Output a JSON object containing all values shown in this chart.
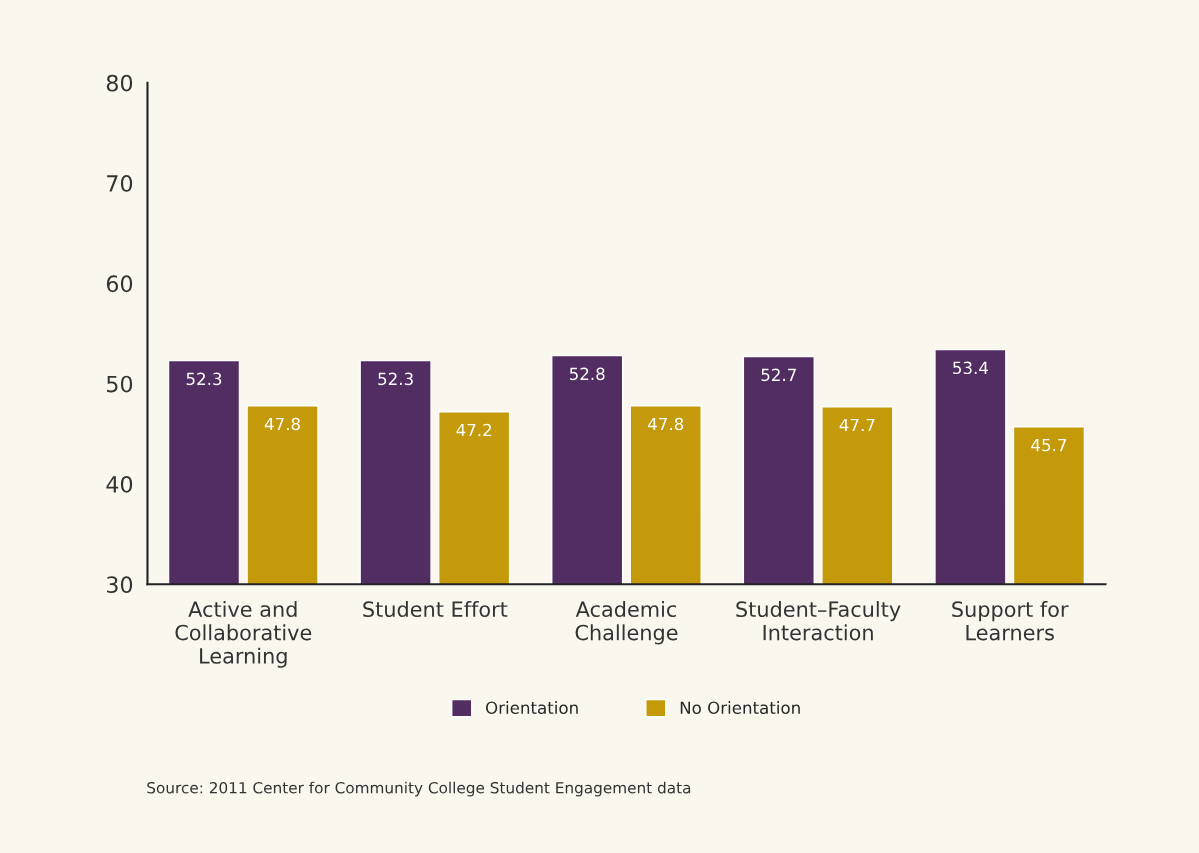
{
  "chart_data": {
    "type": "bar",
    "categories": [
      "Active and\nCollaborative\nLearning",
      "Student Effort",
      "Academic\nChallenge",
      "Student–Faculty\nInteraction",
      "Support for\nLearners"
    ],
    "series": [
      {
        "name": "Orientation",
        "color": "#522d62",
        "values": [
          52.3,
          52.3,
          52.8,
          52.7,
          53.4
        ]
      },
      {
        "name": "No Orientation",
        "color": "#c59a0a",
        "values": [
          47.8,
          47.2,
          47.8,
          47.7,
          45.7
        ]
      }
    ],
    "ylim": [
      30,
      80
    ],
    "yticks": [
      30,
      40,
      50,
      60,
      70,
      80
    ],
    "data_labels": true,
    "grid": false,
    "legend": "bottom",
    "annotations": [
      "Source: 2011 Center for Community College Student Engagement data"
    ]
  }
}
